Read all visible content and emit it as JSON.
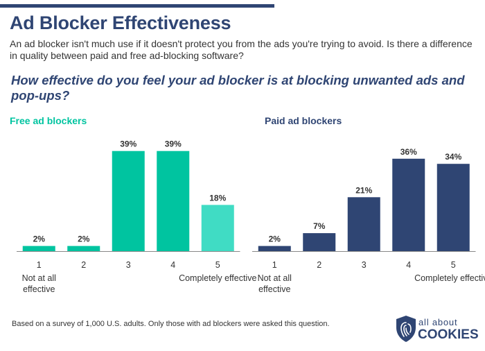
{
  "header": {
    "title": "Ad Blocker Effectiveness",
    "subtitle": "An ad blocker isn't much use if it doesn't protect you from the ads you're trying to avoid. Is there a difference in quality between paid and free ad-blocking software?",
    "question": "How effective do you feel your ad blocker is at blocking unwanted ads and pop-ups?"
  },
  "chart_data": [
    {
      "type": "bar",
      "title": "Free ad blockers",
      "categories": [
        "1",
        "2",
        "3",
        "4",
        "5"
      ],
      "category_notes": [
        "Not at all effective",
        "",
        "",
        "",
        "Completely effective"
      ],
      "values": [
        2,
        2,
        39,
        39,
        18
      ],
      "value_labels": [
        "2%",
        "2%",
        "39%",
        "39%",
        "18%"
      ],
      "unit": "%",
      "ylim": [
        0,
        40
      ],
      "colors": [
        "#00c4a0",
        "#00c4a0",
        "#00c4a0",
        "#00c4a0",
        "#40dcc4"
      ],
      "title_color": "#00c4a0"
    },
    {
      "type": "bar",
      "title": "Paid ad blockers",
      "categories": [
        "1",
        "2",
        "3",
        "4",
        "5"
      ],
      "category_notes": [
        "Not at all effective",
        "",
        "",
        "",
        "Completely effective"
      ],
      "values": [
        2,
        7,
        21,
        36,
        34
      ],
      "value_labels": [
        "2%",
        "7%",
        "21%",
        "36%",
        "34%"
      ],
      "unit": "%",
      "ylim": [
        0,
        40
      ],
      "colors": [
        "#2f4573",
        "#2f4573",
        "#2f4573",
        "#2f4573",
        "#2f4573"
      ],
      "title_color": "#2f4573"
    }
  ],
  "footer": {
    "note": "Based on a survey of 1,000 U.S. adults. Only those with ad blockers were asked this question.",
    "logo_top": "all about",
    "logo_bottom": "COOKIES",
    "logo_color": "#2f4573"
  }
}
